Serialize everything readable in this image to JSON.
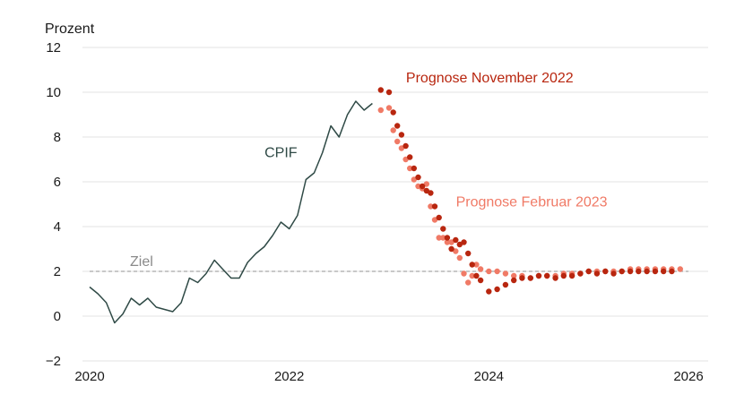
{
  "chart_data": {
    "type": "line",
    "ylabel": "Prozent",
    "ylim": [
      -2,
      12
    ],
    "yticks": [
      -2,
      0,
      2,
      4,
      6,
      8,
      10,
      12
    ],
    "xlim": [
      2020,
      2026
    ],
    "xticks": [
      2020,
      2022,
      2024,
      2026
    ],
    "grid": "horizontal",
    "target": {
      "label": "Ziel",
      "value": 2
    },
    "colors": {
      "cpif": "#2f4a46",
      "nov2022": "#b8260f",
      "feb2023": "#f07a66",
      "target": "#a8a8a8",
      "grid": "#e3e3e3"
    },
    "series": [
      {
        "name": "CPIF",
        "style": "line",
        "x": [
          2020.0,
          2020.083,
          2020.167,
          2020.25,
          2020.333,
          2020.417,
          2020.5,
          2020.583,
          2020.667,
          2020.75,
          2020.833,
          2020.917,
          2021.0,
          2021.083,
          2021.167,
          2021.25,
          2021.333,
          2021.417,
          2021.5,
          2021.583,
          2021.667,
          2021.75,
          2021.833,
          2021.917,
          2022.0,
          2022.083,
          2022.167,
          2022.25,
          2022.333,
          2022.417,
          2022.5,
          2022.583,
          2022.667,
          2022.75,
          2022.833
        ],
        "values": [
          1.3,
          1.0,
          0.6,
          -0.3,
          0.1,
          0.8,
          0.5,
          0.8,
          0.4,
          0.3,
          0.2,
          0.6,
          1.7,
          1.5,
          1.9,
          2.5,
          2.1,
          1.7,
          1.7,
          2.4,
          2.8,
          3.1,
          3.6,
          4.2,
          3.9,
          4.5,
          6.1,
          6.4,
          7.3,
          8.5,
          8.0,
          9.0,
          9.6,
          9.2,
          9.5
        ]
      },
      {
        "name": "Prognose November 2022",
        "style": "dots",
        "x": [
          2022.917,
          2023.0,
          2023.042,
          2023.083,
          2023.125,
          2023.167,
          2023.208,
          2023.25,
          2023.292,
          2023.333,
          2023.375,
          2023.417,
          2023.458,
          2023.5,
          2023.542,
          2023.583,
          2023.625,
          2023.667,
          2023.708,
          2023.75,
          2023.792,
          2023.833,
          2023.875,
          2023.917,
          2024.0,
          2024.083,
          2024.167,
          2024.25,
          2024.333,
          2024.417,
          2024.5,
          2024.583,
          2024.667,
          2024.75,
          2024.833,
          2024.917,
          2025.0,
          2025.083,
          2025.167,
          2025.25,
          2025.333,
          2025.417,
          2025.5,
          2025.583,
          2025.667,
          2025.75,
          2025.833
        ],
        "values": [
          10.1,
          10.0,
          9.1,
          8.5,
          8.1,
          7.6,
          7.1,
          6.6,
          6.2,
          5.8,
          5.6,
          5.5,
          4.9,
          4.4,
          3.9,
          3.5,
          3.0,
          3.4,
          3.2,
          3.3,
          2.8,
          2.3,
          1.8,
          1.6,
          1.1,
          1.2,
          1.4,
          1.6,
          1.7,
          1.7,
          1.8,
          1.8,
          1.7,
          1.8,
          1.8,
          1.9,
          2.0,
          1.9,
          2.0,
          1.9,
          2.0,
          2.0,
          2.0,
          2.0,
          2.0,
          2.0,
          2.0
        ]
      },
      {
        "name": "Prognose Februar 2023",
        "style": "dots",
        "x": [
          2022.917,
          2023.0,
          2023.042,
          2023.083,
          2023.125,
          2023.167,
          2023.208,
          2023.25,
          2023.292,
          2023.333,
          2023.375,
          2023.417,
          2023.458,
          2023.5,
          2023.542,
          2023.583,
          2023.625,
          2023.667,
          2023.708,
          2023.75,
          2023.792,
          2023.833,
          2023.875,
          2023.917,
          2024.0,
          2024.083,
          2024.167,
          2024.25,
          2024.333,
          2024.417,
          2024.5,
          2024.583,
          2024.667,
          2024.75,
          2024.833,
          2024.917,
          2025.0,
          2025.083,
          2025.167,
          2025.25,
          2025.333,
          2025.417,
          2025.5,
          2025.583,
          2025.667,
          2025.75,
          2025.833,
          2025.917
        ],
        "values": [
          9.2,
          9.3,
          8.3,
          7.8,
          7.5,
          7.0,
          6.6,
          6.1,
          5.8,
          5.7,
          5.9,
          4.9,
          4.3,
          3.5,
          3.5,
          3.3,
          3.3,
          2.9,
          2.6,
          1.9,
          1.5,
          1.8,
          2.3,
          2.1,
          2.0,
          2.0,
          1.9,
          1.8,
          1.8,
          1.7,
          1.8,
          1.8,
          1.8,
          1.9,
          1.9,
          1.9,
          2.0,
          2.0,
          2.0,
          2.0,
          2.0,
          2.1,
          2.1,
          2.1,
          2.1,
          2.1,
          2.1,
          2.1
        ]
      }
    ],
    "annotations": [
      {
        "text": "CPIF",
        "series": "CPIF",
        "x": 2022.08,
        "y": 7.1,
        "anchor": "end"
      },
      {
        "text": "Prognose November 2022",
        "series": "Prognose November 2022",
        "x": 2023.17,
        "y": 10.45,
        "anchor": "start"
      },
      {
        "text": "Prognose Februar 2023",
        "series": "Prognose Februar 2023",
        "x": 2023.67,
        "y": 4.9,
        "anchor": "start"
      }
    ]
  }
}
